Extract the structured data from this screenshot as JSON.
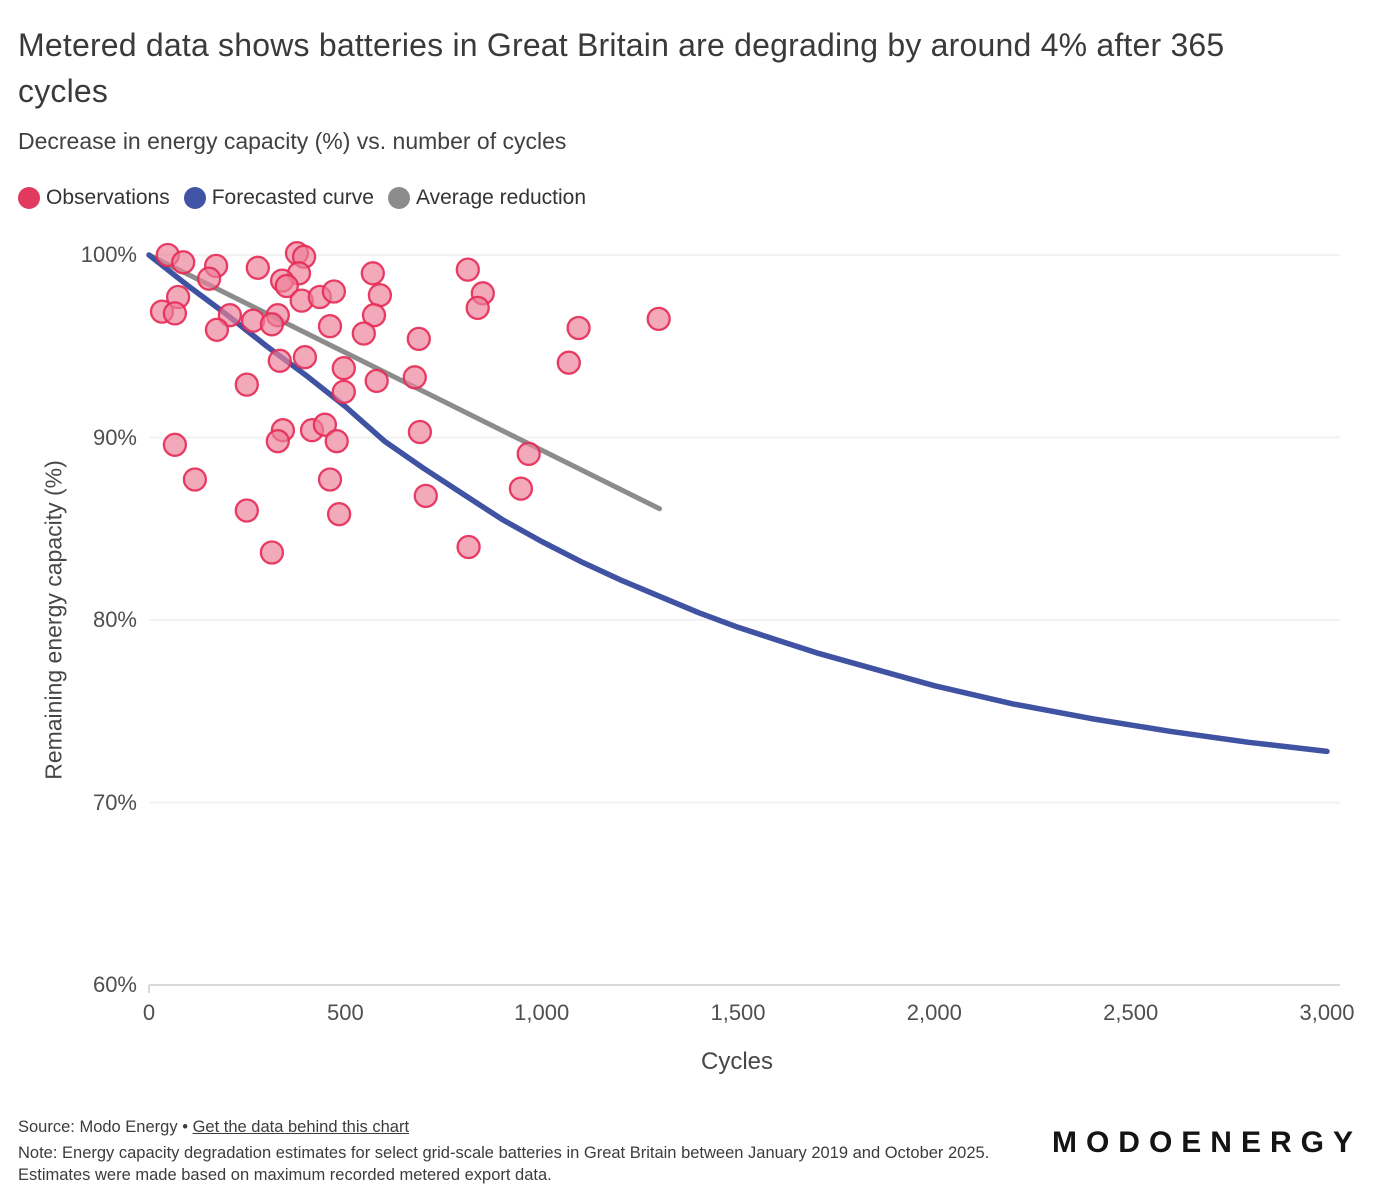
{
  "header": {
    "title": "Metered data shows batteries in Great Britain are degrading by around 4% after 365 cycles",
    "subtitle": "Decrease in energy capacity (%) vs. number of cycles"
  },
  "legend": {
    "items": [
      {
        "label": "Observations",
        "color": "#E23A5E"
      },
      {
        "label": "Forecasted curve",
        "color": "#4053A4"
      },
      {
        "label": "Average reduction",
        "color": "#8C8C8C"
      }
    ]
  },
  "chart_data": {
    "type": "scatter",
    "title": "Metered data shows batteries in Great Britain are degrading by around 4% after 365 cycles",
    "subtitle": "Decrease in energy capacity (%) vs. number of cycles",
    "xlabel": "Cycles",
    "ylabel": "Remaining energy capacity (%)",
    "xlim": [
      0,
      3000
    ],
    "ylim": [
      60,
      100
    ],
    "grid": "horizontal",
    "legend_position": "top-left",
    "x_tick_values": [
      0,
      500,
      1000,
      1500,
      2000,
      2500,
      3000
    ],
    "x_tick_labels": [
      "0",
      "500",
      "1,000",
      "1,500",
      "2,000",
      "2,500",
      "3,000"
    ],
    "y_tick_values": [
      60,
      70,
      80,
      90,
      100
    ],
    "y_tick_labels": [
      "60%",
      "70%",
      "80%",
      "90%",
      "100%"
    ],
    "series": [
      {
        "name": "Observations",
        "kind": "scatter",
        "stroke": "#E62E58",
        "fill": "#EC8099",
        "fill_opacity": 0.68,
        "points": [
          [
            48,
            100.0
          ],
          [
            87,
            99.6
          ],
          [
            171,
            99.4
          ],
          [
            153,
            98.7
          ],
          [
            277,
            99.3
          ],
          [
            377,
            100.1
          ],
          [
            395,
            99.9
          ],
          [
            382,
            99.0
          ],
          [
            339,
            98.6
          ],
          [
            351,
            98.3
          ],
          [
            389,
            97.5
          ],
          [
            435,
            97.7
          ],
          [
            471,
            98.0
          ],
          [
            74,
            97.7
          ],
          [
            33,
            96.9
          ],
          [
            66,
            96.8
          ],
          [
            206,
            96.7
          ],
          [
            173,
            95.9
          ],
          [
            265,
            96.4
          ],
          [
            328,
            96.7
          ],
          [
            313,
            96.2
          ],
          [
            461,
            96.1
          ],
          [
            333,
            94.2
          ],
          [
            397,
            94.4
          ],
          [
            496,
            93.8
          ],
          [
            496,
            92.5
          ],
          [
            249,
            92.9
          ],
          [
            570,
            99.0
          ],
          [
            588,
            97.8
          ],
          [
            573,
            96.7
          ],
          [
            547,
            95.7
          ],
          [
            812,
            99.2
          ],
          [
            850,
            97.9
          ],
          [
            837,
            97.1
          ],
          [
            687,
            95.4
          ],
          [
            580,
            93.1
          ],
          [
            677,
            93.3
          ],
          [
            66,
            89.6
          ],
          [
            117,
            87.7
          ],
          [
            249,
            86.0
          ],
          [
            313,
            83.7
          ],
          [
            461,
            87.7
          ],
          [
            484,
            85.8
          ],
          [
            341,
            90.4
          ],
          [
            328,
            89.8
          ],
          [
            415,
            90.4
          ],
          [
            448,
            90.7
          ],
          [
            478,
            89.8
          ],
          [
            690,
            90.3
          ],
          [
            967,
            89.1
          ],
          [
            947,
            87.2
          ],
          [
            705,
            86.8
          ],
          [
            814,
            84.0
          ],
          [
            1094,
            96.0
          ],
          [
            1069,
            94.1
          ],
          [
            1298,
            96.5
          ]
        ]
      },
      {
        "name": "Forecasted curve",
        "kind": "line",
        "color": "#4052A2",
        "points": [
          [
            0,
            100
          ],
          [
            100,
            98.3
          ],
          [
            200,
            96.7
          ],
          [
            300,
            95.0
          ],
          [
            400,
            93.4
          ],
          [
            500,
            91.7
          ],
          [
            600,
            89.8
          ],
          [
            700,
            88.3
          ],
          [
            800,
            86.9
          ],
          [
            900,
            85.5
          ],
          [
            1000,
            84.3
          ],
          [
            1100,
            83.2
          ],
          [
            1200,
            82.2
          ],
          [
            1300,
            81.3
          ],
          [
            1400,
            80.4
          ],
          [
            1500,
            79.6
          ],
          [
            1600,
            78.9
          ],
          [
            1700,
            78.2
          ],
          [
            1800,
            77.6
          ],
          [
            1900,
            77.0
          ],
          [
            2000,
            76.4
          ],
          [
            2200,
            75.4
          ],
          [
            2400,
            74.6
          ],
          [
            2600,
            73.9
          ],
          [
            2800,
            73.3
          ],
          [
            3000,
            72.8
          ]
        ]
      },
      {
        "name": "Average reduction",
        "kind": "line",
        "color": "#8C8C8C",
        "points": [
          [
            0,
            100
          ],
          [
            1300,
            86.1
          ]
        ]
      }
    ]
  },
  "footer": {
    "source_prefix": "Source: Modo Energy",
    "separator": "•",
    "link_text": "Get the data behind this chart",
    "note": "Note: Energy capacity degradation estimates for select grid-scale batteries in Great Britain between January 2019 and October 2025. Estimates were made based on maximum recorded metered export data.",
    "logo": "MODOENERGY"
  }
}
